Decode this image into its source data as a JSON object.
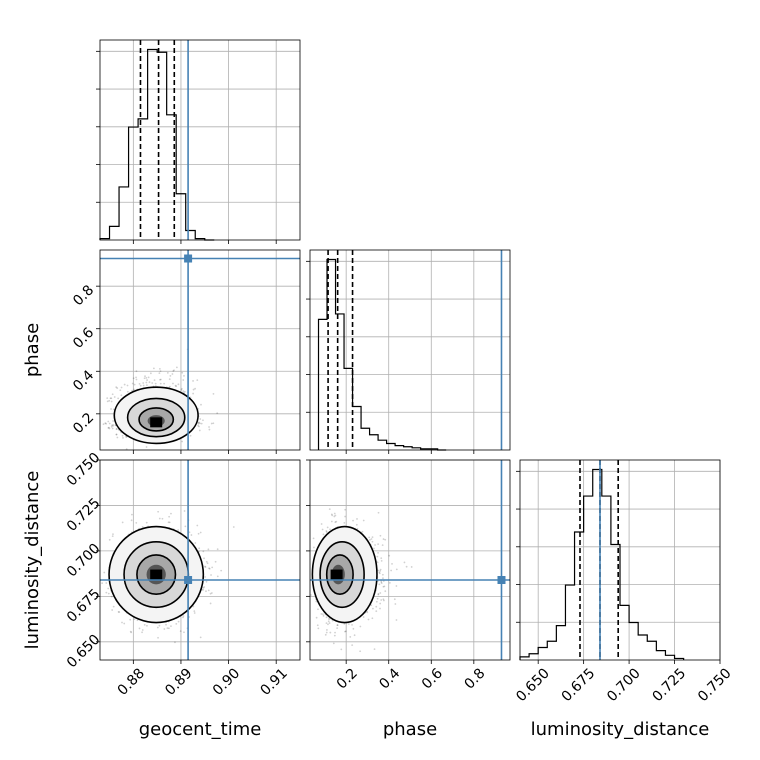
{
  "chart_data": {
    "type": "corner",
    "parameters": [
      "geocent_time",
      "phase",
      "luminosity_distance"
    ],
    "truths": {
      "geocent_time": 0.8915,
      "phase": 0.93,
      "luminosity_distance": 0.684
    },
    "colors": {
      "truth": "#4682b4",
      "hist": "#000000",
      "grid": "#b0b0b0",
      "quantile": "#000000"
    },
    "grid": true,
    "axes": {
      "geocent_time": {
        "range": [
          0.873,
          0.915
        ],
        "ticks": [
          0.88,
          0.89,
          0.9,
          0.91
        ],
        "tick_labels": [
          "0.88",
          "0.89",
          "0.90",
          "0.91"
        ]
      },
      "phase": {
        "range": [
          0.03,
          0.97
        ],
        "ticks": [
          0.2,
          0.4,
          0.6,
          0.8
        ],
        "tick_labels": [
          "0.2",
          "0.4",
          "0.6",
          "0.8"
        ]
      },
      "luminosity_distance": {
        "range": [
          0.64,
          0.75
        ],
        "ticks": [
          0.65,
          0.675,
          0.7,
          0.725,
          0.75
        ],
        "tick_labels": [
          "0.650",
          "0.675",
          "0.700",
          "0.725",
          "0.750"
        ],
        "y_ticks": [
          0.65,
          0.675,
          0.7,
          0.725,
          0.75
        ],
        "y_tick_labels": [
          "0.650",
          "0.675",
          "0.700",
          "0.725",
          "0.750"
        ]
      }
    },
    "histograms": {
      "geocent_time": {
        "bin_edges": [
          0.873,
          0.875,
          0.877,
          0.879,
          0.881,
          0.883,
          0.885,
          0.887,
          0.889,
          0.891,
          0.893,
          0.895,
          0.897
        ],
        "counts": [
          1,
          10,
          39,
          83,
          89,
          140,
          138,
          92,
          34,
          7,
          1,
          0
        ],
        "quantiles": [
          0.8815,
          0.8853,
          0.8886
        ]
      },
      "phase": {
        "bin_edges": [
          0.07,
          0.11,
          0.15,
          0.19,
          0.23,
          0.27,
          0.31,
          0.35,
          0.39,
          0.43,
          0.47,
          0.51,
          0.55,
          0.59,
          0.63,
          0.67
        ],
        "counts": [
          120,
          175,
          125,
          75,
          40,
          20,
          14,
          9,
          6,
          4,
          3,
          2,
          1,
          1,
          0
        ],
        "quantiles": [
          0.115,
          0.16,
          0.23
        ]
      },
      "luminosity_distance": {
        "bin_edges": [
          0.64,
          0.645,
          0.65,
          0.655,
          0.66,
          0.665,
          0.67,
          0.675,
          0.68,
          0.685,
          0.69,
          0.695,
          0.7,
          0.705,
          0.71,
          0.715,
          0.72,
          0.725,
          0.73
        ],
        "counts": [
          2,
          4,
          8,
          12,
          22,
          48,
          82,
          105,
          122,
          105,
          74,
          35,
          24,
          16,
          12,
          6,
          3,
          1
        ],
        "quantiles": [
          0.673,
          0.684,
          0.694
        ]
      }
    },
    "contours_2d": [
      {
        "x": "geocent_time",
        "y": "phase",
        "center": [
          0.8848,
          0.16
        ],
        "spread": [
          0.004,
          0.05
        ]
      },
      {
        "x": "geocent_time",
        "y": "luminosity_distance",
        "center": [
          0.8848,
          0.687
        ],
        "spread": [
          0.0045,
          0.012
        ]
      },
      {
        "x": "phase",
        "y": "luminosity_distance",
        "center": [
          0.155,
          0.687
        ],
        "spread": [
          0.06,
          0.012
        ]
      }
    ]
  }
}
